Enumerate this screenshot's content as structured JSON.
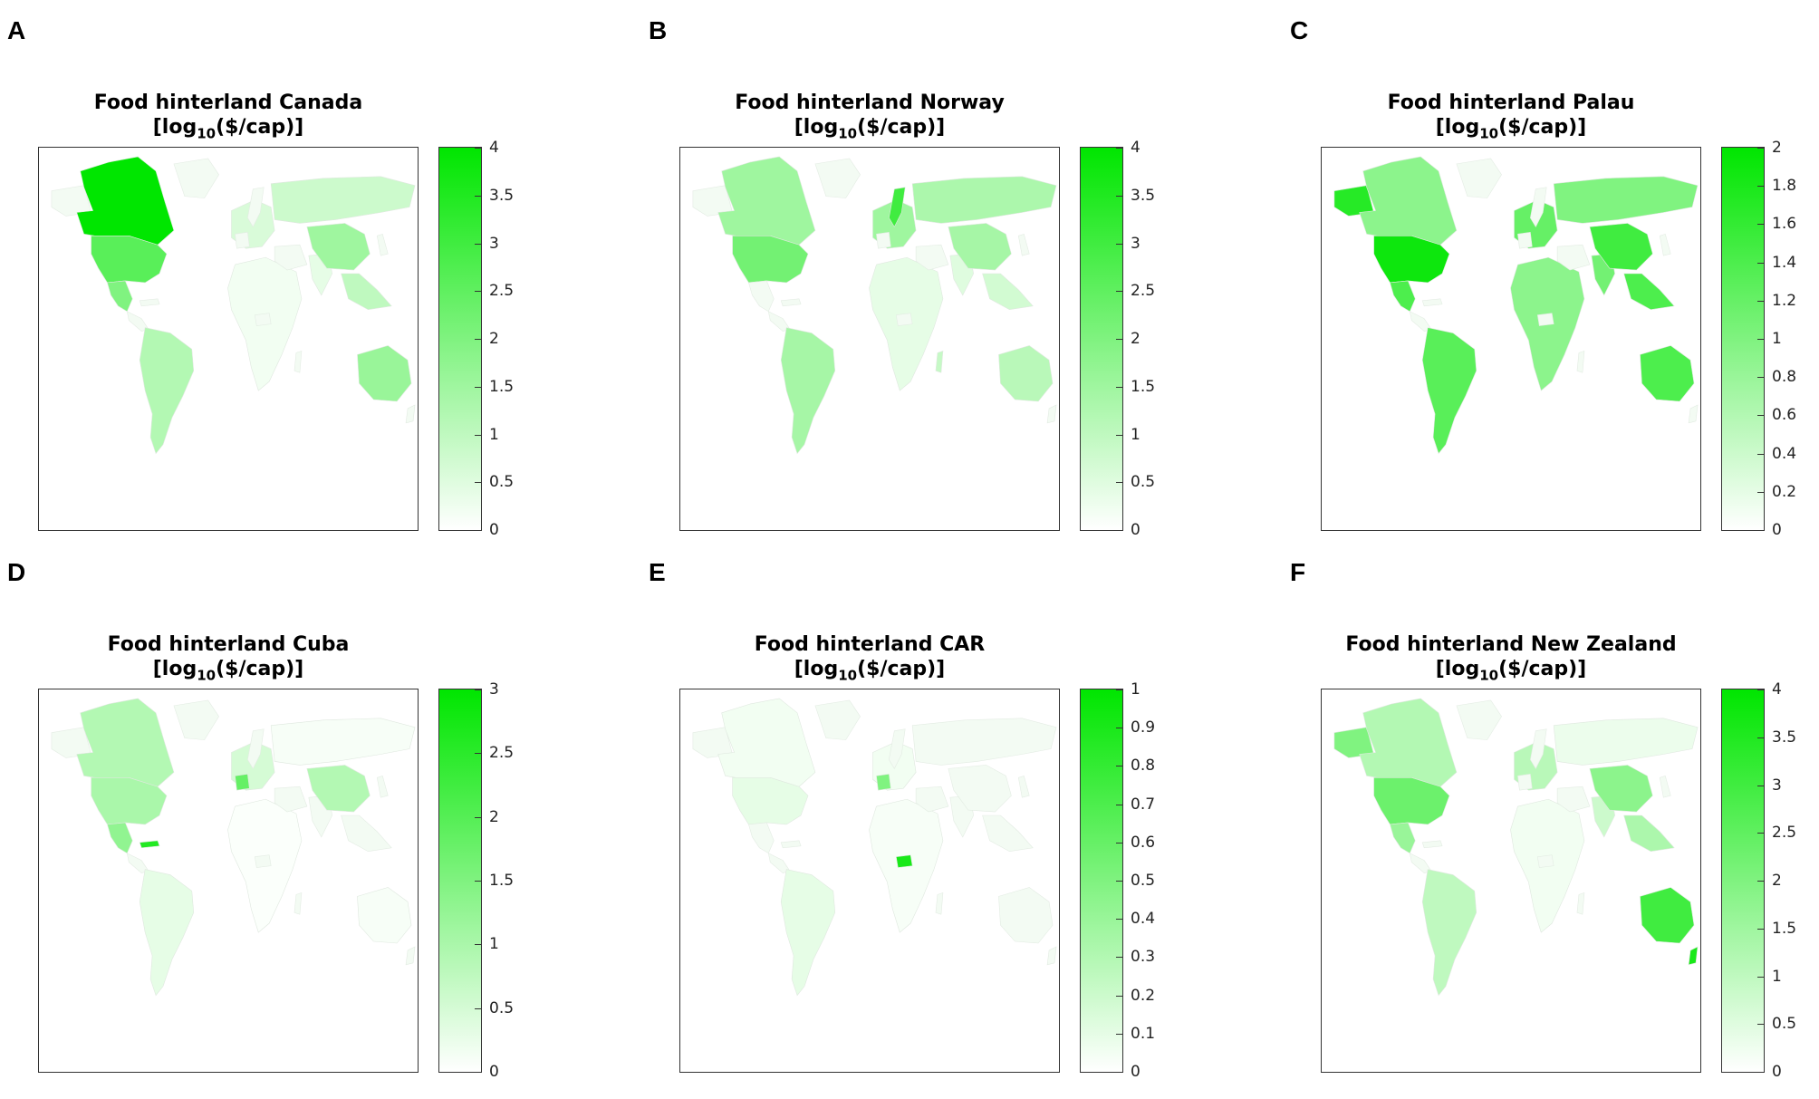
{
  "chart_data": [
    {
      "type": "heatmap",
      "panel": "A",
      "title": "Food hinterland Canada",
      "unit_prefix": "[log",
      "unit_sub": "10",
      "unit_suffix": "($/cap)]",
      "colorbar": {
        "min": 0,
        "max": 4,
        "ticks": [
          "0",
          "0.5",
          "1",
          "1.5",
          "2",
          "2.5",
          "3",
          "3.5",
          "4"
        ],
        "color_low": "#ffffff",
        "color_high": "#00e600"
      },
      "regions": [
        {
          "name": "Canada",
          "value": 4
        },
        {
          "name": "USA",
          "value": 2.6
        },
        {
          "name": "Mexico",
          "value": 2.0
        },
        {
          "name": "South America",
          "value": 1.2
        },
        {
          "name": "China",
          "value": 1.5
        },
        {
          "name": "Russia",
          "value": 0.8
        },
        {
          "name": "Australia",
          "value": 1.6
        },
        {
          "name": "Europe",
          "value": 0.6
        },
        {
          "name": "Africa",
          "value": 0.2
        },
        {
          "name": "India",
          "value": 0.4
        },
        {
          "name": "Southeast Asia",
          "value": 1.0
        }
      ]
    },
    {
      "type": "heatmap",
      "panel": "B",
      "title": "Food hinterland Norway",
      "unit_prefix": "[log",
      "unit_sub": "10",
      "unit_suffix": "($/cap)]",
      "colorbar": {
        "min": 0,
        "max": 4,
        "ticks": [
          "0",
          "0.5",
          "1",
          "1.5",
          "2",
          "2.5",
          "3",
          "3.5",
          "4"
        ],
        "color_low": "#ffffff",
        "color_high": "#00e600"
      },
      "regions": [
        {
          "name": "Norway",
          "value": 3.0
        },
        {
          "name": "USA",
          "value": 2.2
        },
        {
          "name": "Canada",
          "value": 1.5
        },
        {
          "name": "Russia",
          "value": 1.3
        },
        {
          "name": "Europe",
          "value": 1.5
        },
        {
          "name": "China",
          "value": 1.4
        },
        {
          "name": "South America",
          "value": 1.4
        },
        {
          "name": "Australia",
          "value": 1.1
        },
        {
          "name": "Africa",
          "value": 0.4
        },
        {
          "name": "Madagascar",
          "value": 0.9
        },
        {
          "name": "India",
          "value": 0.5
        },
        {
          "name": "Southeast Asia",
          "value": 0.7
        }
      ]
    },
    {
      "type": "heatmap",
      "panel": "C",
      "title": "Food hinterland Palau",
      "unit_prefix": "[log",
      "unit_sub": "10",
      "unit_suffix": "($/cap)]",
      "colorbar": {
        "min": 0,
        "max": 2,
        "ticks": [
          "0",
          "0.2",
          "0.4",
          "0.6",
          "0.8",
          "1",
          "1.2",
          "1.4",
          "1.6",
          "1.8",
          "2"
        ],
        "color_low": "#ffffff",
        "color_high": "#00e600"
      },
      "regions": [
        {
          "name": "USA",
          "value": 1.9
        },
        {
          "name": "Canada",
          "value": 0.9
        },
        {
          "name": "Alaska",
          "value": 1.7
        },
        {
          "name": "Mexico",
          "value": 1.4
        },
        {
          "name": "South America",
          "value": 1.3
        },
        {
          "name": "China",
          "value": 1.5
        },
        {
          "name": "Russia",
          "value": 1.0
        },
        {
          "name": "Australia",
          "value": 1.4
        },
        {
          "name": "Europe",
          "value": 1.2
        },
        {
          "name": "Africa",
          "value": 0.9
        },
        {
          "name": "India",
          "value": 1.1
        },
        {
          "name": "Southeast Asia",
          "value": 1.4
        }
      ]
    },
    {
      "type": "heatmap",
      "panel": "D",
      "title": "Food hinterland Cuba",
      "unit_prefix": "[log",
      "unit_sub": "10",
      "unit_suffix": "($/cap)]",
      "colorbar": {
        "min": 0,
        "max": 3,
        "ticks": [
          "0",
          "0.5",
          "1",
          "1.5",
          "2",
          "2.5",
          "3"
        ],
        "color_low": "#ffffff",
        "color_high": "#00e600"
      },
      "regions": [
        {
          "name": "Canada",
          "value": 0.9
        },
        {
          "name": "USA",
          "value": 1.0
        },
        {
          "name": "Mexico",
          "value": 1.3
        },
        {
          "name": "Cuba",
          "value": 2.6
        },
        {
          "name": "Europe",
          "value": 0.5
        },
        {
          "name": "France",
          "value": 1.8
        },
        {
          "name": "China",
          "value": 0.9
        },
        {
          "name": "South America",
          "value": 0.3
        },
        {
          "name": "Australia",
          "value": 0.1
        },
        {
          "name": "Russia",
          "value": 0.1
        },
        {
          "name": "Africa",
          "value": 0.05
        }
      ]
    },
    {
      "type": "heatmap",
      "panel": "E",
      "title": "Food hinterland CAR",
      "unit_prefix": "[log",
      "unit_sub": "10",
      "unit_suffix": "($/cap)]",
      "colorbar": {
        "min": 0,
        "max": 1,
        "ticks": [
          "0",
          "0.1",
          "0.2",
          "0.3",
          "0.4",
          "0.5",
          "0.6",
          "0.7",
          "0.8",
          "0.9",
          "1"
        ],
        "color_low": "#ffffff",
        "color_high": "#00e600"
      },
      "regions": [
        {
          "name": "Central African Republic",
          "value": 0.9
        },
        {
          "name": "France",
          "value": 0.5
        },
        {
          "name": "USA",
          "value": 0.1
        },
        {
          "name": "South America",
          "value": 0.1
        },
        {
          "name": "Canada",
          "value": 0.05
        },
        {
          "name": "Europe",
          "value": 0.05
        },
        {
          "name": "Africa",
          "value": 0.03
        },
        {
          "name": "Australia",
          "value": 0.0
        },
        {
          "name": "China",
          "value": 0.0
        },
        {
          "name": "Russia",
          "value": 0.0
        }
      ]
    },
    {
      "type": "heatmap",
      "panel": "F",
      "title": "Food hinterland New Zealand",
      "unit_prefix": "[log",
      "unit_sub": "10",
      "unit_suffix": "($/cap)]",
      "colorbar": {
        "min": 0,
        "max": 4,
        "ticks": [
          "0",
          "0.5",
          "1",
          "1.5",
          "2",
          "2.5",
          "3",
          "3.5",
          "4"
        ],
        "color_low": "#ffffff",
        "color_high": "#00e600"
      },
      "regions": [
        {
          "name": "New Zealand",
          "value": 3.6
        },
        {
          "name": "Australia",
          "value": 3.0
        },
        {
          "name": "USA",
          "value": 2.3
        },
        {
          "name": "Canada",
          "value": 1.2
        },
        {
          "name": "Alaska",
          "value": 2.0
        },
        {
          "name": "Mexico",
          "value": 1.6
        },
        {
          "name": "China",
          "value": 1.8
        },
        {
          "name": "Southeast Asia",
          "value": 1.3
        },
        {
          "name": "South America",
          "value": 1.0
        },
        {
          "name": "Europe",
          "value": 1.1
        },
        {
          "name": "Russia",
          "value": 0.3
        },
        {
          "name": "India",
          "value": 0.8
        },
        {
          "name": "Africa",
          "value": 0.2
        }
      ]
    }
  ],
  "panel_letters": [
    "A",
    "B",
    "C",
    "D",
    "E",
    "F"
  ]
}
